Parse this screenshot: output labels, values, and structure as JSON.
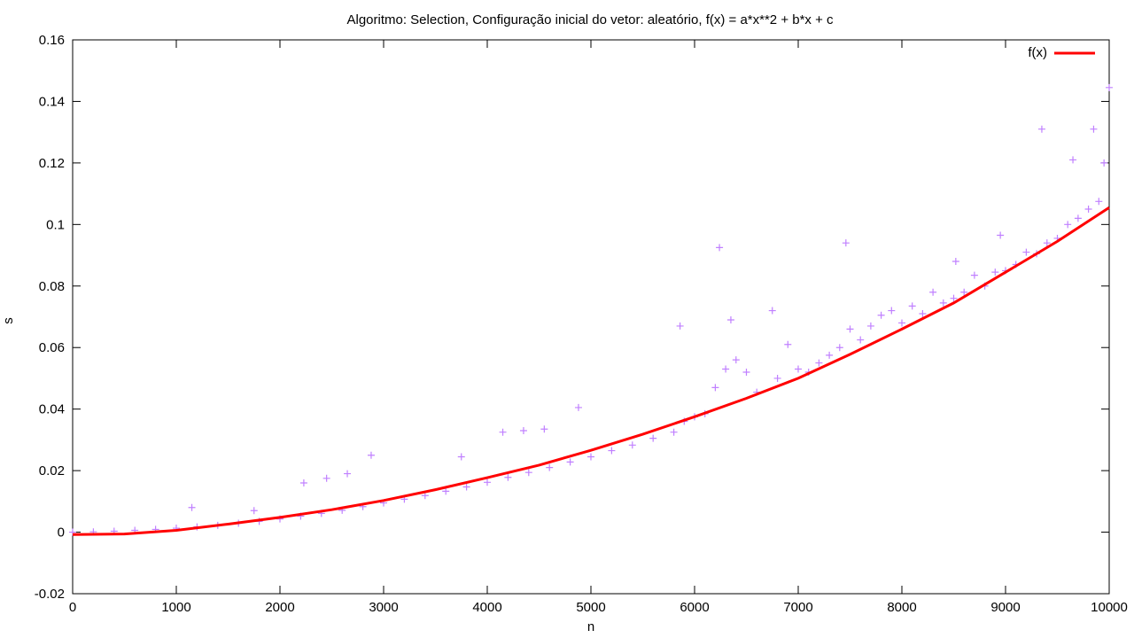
{
  "chart_data": {
    "type": "scatter",
    "title": "Algoritmo: Selection, Configuração inicial do vetor: aleatório, f(x) = a*x**2 + b*x + c",
    "xlabel": "n",
    "ylabel": "s",
    "xlim": [
      0,
      10000
    ],
    "ylim": [
      -0.02,
      0.16
    ],
    "x_ticks": [
      "0",
      "1000",
      "2000",
      "3000",
      "4000",
      "5000",
      "6000",
      "7000",
      "8000",
      "9000",
      "10000"
    ],
    "y_ticks": [
      "-0.02",
      "0",
      "0.02",
      "0.04",
      "0.06",
      "0.08",
      "0.1",
      "0.12",
      "0.14",
      "0.16"
    ],
    "grid": false,
    "legend_position": "top-right",
    "colors": {
      "points": "#c080ff",
      "fit": "#ff0000"
    },
    "series": [
      {
        "kind": "points",
        "marker": "+",
        "x": [
          0,
          200,
          400,
          600,
          800,
          1000,
          1150,
          1200,
          1400,
          1600,
          1750,
          1800,
          2000,
          2200,
          2230,
          2400,
          2450,
          2600,
          2650,
          2800,
          2880,
          3000,
          3200,
          3400,
          3600,
          3750,
          3800,
          4000,
          4150,
          4200,
          4350,
          4400,
          4550,
          4600,
          4800,
          4880,
          5000,
          5200,
          5400,
          5600,
          5800,
          5860,
          5900,
          6000,
          6100,
          6200,
          6240,
          6300,
          6350,
          6400,
          6500,
          6600,
          6750,
          6800,
          6900,
          7000,
          7100,
          7200,
          7300,
          7400,
          7460,
          7500,
          7600,
          7700,
          7800,
          7900,
          8000,
          8100,
          8200,
          8300,
          8400,
          8500,
          8520,
          8600,
          8700,
          8800,
          8900,
          8950,
          9000,
          9100,
          9200,
          9300,
          9350,
          9400,
          9500,
          9600,
          9650,
          9700,
          9800,
          9850,
          9900,
          9950,
          10000
        ],
        "y": [
          0.0,
          0.0001,
          0.0003,
          0.0006,
          0.0009,
          0.0013,
          0.008,
          0.0017,
          0.0022,
          0.0029,
          0.007,
          0.0035,
          0.0043,
          0.0052,
          0.016,
          0.0061,
          0.0175,
          0.0071,
          0.019,
          0.0083,
          0.025,
          0.0095,
          0.0107,
          0.0119,
          0.0133,
          0.0245,
          0.0147,
          0.0162,
          0.0325,
          0.0178,
          0.033,
          0.0194,
          0.0335,
          0.021,
          0.0228,
          0.0405,
          0.0245,
          0.0265,
          0.0283,
          0.0305,
          0.0325,
          0.067,
          0.036,
          0.0375,
          0.0385,
          0.047,
          0.0925,
          0.053,
          0.069,
          0.056,
          0.052,
          0.0455,
          0.072,
          0.05,
          0.061,
          0.053,
          0.052,
          0.055,
          0.0575,
          0.06,
          0.094,
          0.066,
          0.0625,
          0.067,
          0.0705,
          0.072,
          0.068,
          0.0735,
          0.071,
          0.078,
          0.0745,
          0.076,
          0.088,
          0.078,
          0.0835,
          0.08,
          0.0845,
          0.0965,
          0.085,
          0.087,
          0.091,
          0.0905,
          0.131,
          0.094,
          0.0955,
          0.1,
          0.121,
          0.102,
          0.105,
          0.131,
          0.1075,
          0.12,
          0.1445
        ]
      },
      {
        "kind": "line",
        "name": "f(x)",
        "x": [
          0,
          500,
          1000,
          1500,
          2000,
          2500,
          3000,
          3500,
          4000,
          4500,
          5000,
          5500,
          6000,
          6500,
          7000,
          7500,
          8000,
          8500,
          9000,
          9500,
          10000
        ],
        "y": [
          -0.0008,
          -0.0006,
          0.0006,
          0.0026,
          0.0048,
          0.0073,
          0.0103,
          0.0138,
          0.0177,
          0.0218,
          0.0266,
          0.0318,
          0.0375,
          0.0435,
          0.05,
          0.0578,
          0.066,
          0.0745,
          0.0845,
          0.0945,
          0.1055
        ]
      }
    ]
  }
}
